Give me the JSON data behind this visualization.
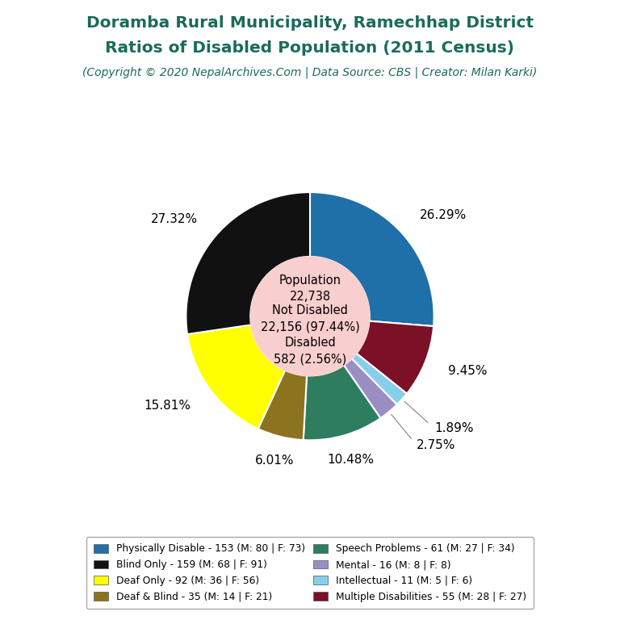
{
  "title_line1": "Doramba Rural Municipality, Ramechhap District",
  "title_line2": "Ratios of Disabled Population (2011 Census)",
  "subtitle": "(Copyright © 2020 NepalArchives.Com | Data Source: CBS | Creator: Milan Karki)",
  "title_color": "#1a6b5a",
  "subtitle_color": "#1a6b5a",
  "center_bg": "#f9cece",
  "population": 22738,
  "not_disabled": 22156,
  "disabled": 582,
  "slices": [
    {
      "label": "Physically Disable - 153 (M: 80 | F: 73)",
      "value": 153,
      "pct": "26.29%",
      "color": "#1f6fa8"
    },
    {
      "label": "Multiple Disabilities - 55 (M: 28 | F: 27)",
      "value": 55,
      "pct": "9.45%",
      "color": "#7b1027"
    },
    {
      "label": "Intellectual - 11 (M: 5 | F: 6)",
      "value": 11,
      "pct": "1.89%",
      "color": "#87ceeb"
    },
    {
      "label": "Mental - 16 (M: 8 | F: 8)",
      "value": 16,
      "pct": "2.75%",
      "color": "#9b8ec4"
    },
    {
      "label": "Speech Problems - 61 (M: 27 | F: 34)",
      "value": 61,
      "pct": "10.48%",
      "color": "#2e7d5e"
    },
    {
      "label": "Deaf & Blind - 35 (M: 14 | F: 21)",
      "value": 35,
      "pct": "6.01%",
      "color": "#8b7320"
    },
    {
      "label": "Deaf Only - 92 (M: 36 | F: 56)",
      "value": 92,
      "pct": "15.81%",
      "color": "#ffff00"
    },
    {
      "label": "Blind Only - 159 (M: 68 | F: 91)",
      "value": 159,
      "pct": "27.32%",
      "color": "#111111"
    }
  ],
  "bg_color": "#ffffff",
  "label_fontsize": 11,
  "title_fontsize": 14.5,
  "subtitle_fontsize": 10
}
